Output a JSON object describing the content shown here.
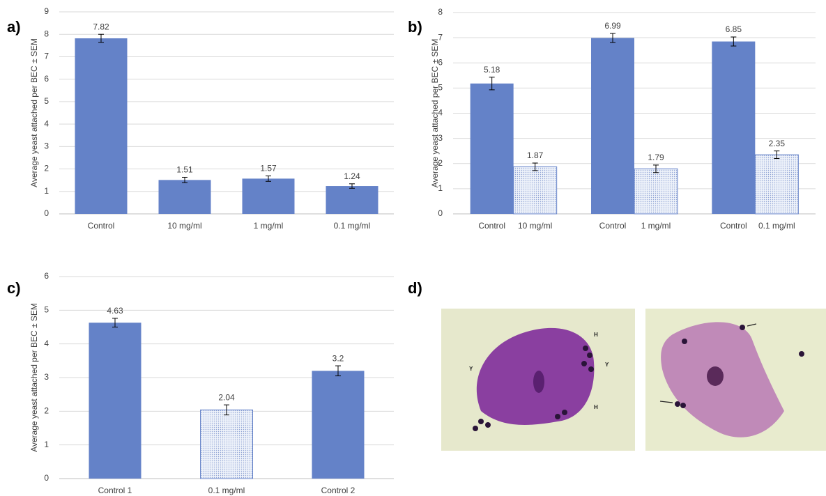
{
  "chart_data": [
    {
      "type": "bar",
      "label": "a)",
      "y_label": "Average yeast attached per BEC ± SEM",
      "categories": [
        "Control",
        "10 mg/ml",
        "1 mg/ml",
        "0.1 mg/ml"
      ],
      "values": [
        7.82,
        1.51,
        1.57,
        1.24
      ],
      "errors": [
        0.18,
        0.12,
        0.12,
        0.1
      ],
      "fills": [
        "solid",
        "solid",
        "solid",
        "solid"
      ],
      "color": "#6482c8",
      "ylim": [
        0,
        9
      ],
      "yticks": [
        0,
        1,
        2,
        3,
        4,
        5,
        6,
        7,
        8,
        9
      ],
      "grid": true
    },
    {
      "type": "bar",
      "label": "b)",
      "y_label": "Average yeast attached per BEC ± SEM",
      "categories": [
        "Control",
        "10 mg/ml",
        "Control",
        "1 mg/ml",
        "Control",
        "0.1 mg/ml"
      ],
      "values": [
        5.18,
        1.87,
        6.99,
        1.79,
        6.85,
        2.35
      ],
      "errors": [
        0.25,
        0.15,
        0.18,
        0.15,
        0.18,
        0.15
      ],
      "fills": [
        "solid",
        "dotted",
        "solid",
        "dotted",
        "solid",
        "dotted"
      ],
      "color": "#6482c8",
      "ylim": [
        0,
        8
      ],
      "yticks": [
        0,
        1,
        2,
        3,
        4,
        5,
        6,
        7,
        8
      ],
      "grid": true
    },
    {
      "type": "bar",
      "label": "c)",
      "y_label": "Average yeast attached per BEC ± SEM",
      "categories": [
        "Control 1",
        "0.1 mg/ml",
        "Control 2"
      ],
      "values": [
        4.63,
        2.04,
        3.2
      ],
      "errors": [
        0.13,
        0.15,
        0.15
      ],
      "fills": [
        "solid",
        "dotted",
        "solid"
      ],
      "color": "#6482c8",
      "ylim": [
        0,
        6
      ],
      "yticks": [
        0,
        1,
        2,
        3,
        4,
        5,
        6
      ],
      "grid": true
    }
  ],
  "images": {
    "label": "d)",
    "annotations": [
      "H",
      "Y",
      "Y",
      "H"
    ]
  }
}
